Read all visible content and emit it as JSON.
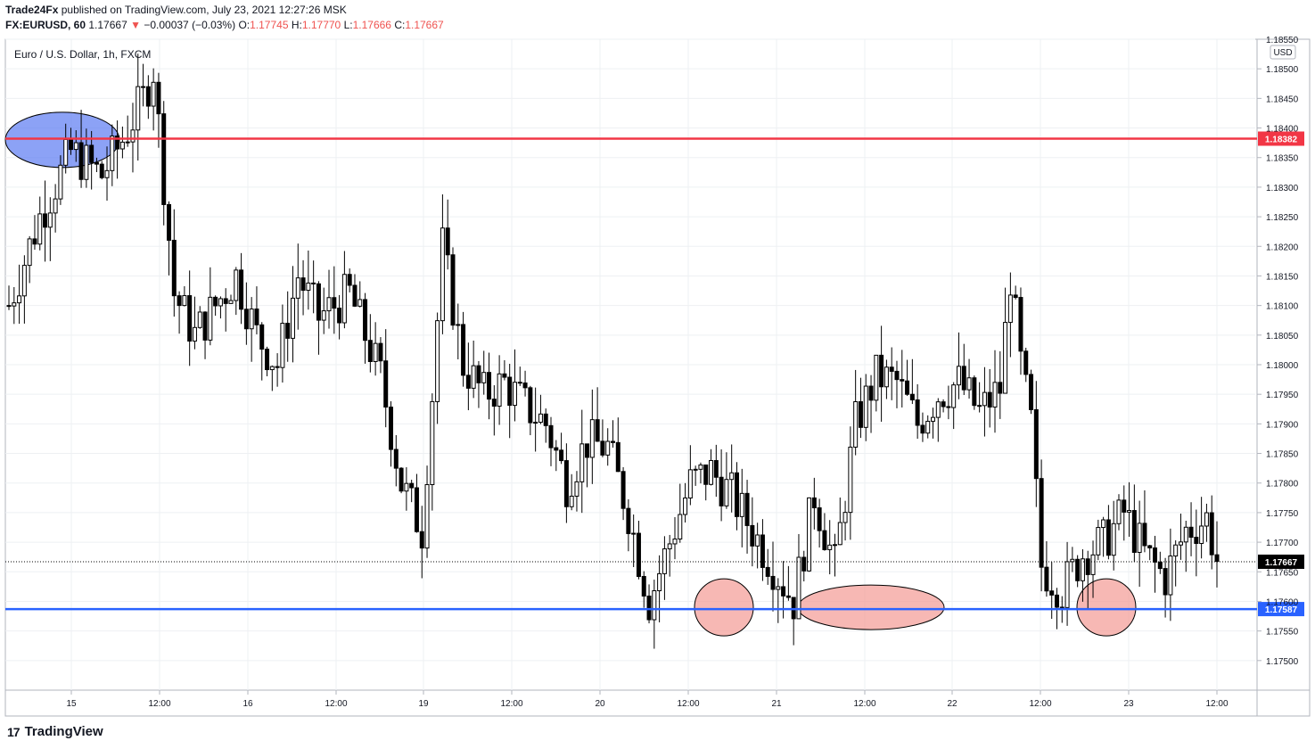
{
  "header": {
    "publisher": "Trade24Fx",
    "published_text": "published on TradingView.com, July 23, 2021 12:27:26 MSK",
    "symbol": "FX:EURUSD, 60",
    "last": "1.17667",
    "change_arrow": "▼",
    "change": "−0.00037 (−0.03%)",
    "o_label": "O:",
    "o_value": "1.17745",
    "h_label": "H:",
    "h_value": "1.17770",
    "l_label": "L:",
    "l_value": "1.17666",
    "c_label": "C:",
    "c_value": "1.17667"
  },
  "chart_title": "Euro / U.S. Dollar, 1h, FXCM",
  "footer": {
    "brand": "TradingView",
    "logo_icon": "tradingview-logo-icon"
  },
  "colors": {
    "resistance": "#f23645",
    "support": "#2962ff",
    "highlight_blue": "#5b7bf2",
    "highlight_red": "#f49a94",
    "candle": "#000000"
  },
  "chart_data": {
    "type": "candlestick",
    "title": "Euro / U.S. Dollar, 1h, FXCM",
    "currency": "USD",
    "ylim": [
      1.1745,
      1.1855
    ],
    "y_ticks": [
      "1.17500",
      "1.17550",
      "1.17600",
      "1.17650",
      "1.17700",
      "1.17750",
      "1.17800",
      "1.17850",
      "1.17900",
      "1.17950",
      "1.18000",
      "1.18050",
      "1.18100",
      "1.18150",
      "1.18200",
      "1.18250",
      "1.18300",
      "1.18350",
      "1.18400",
      "1.18450",
      "1.18500",
      "1.18550"
    ],
    "x_ticks": [
      "15",
      "12:00",
      "16",
      "12:00",
      "19",
      "12:00",
      "20",
      "12:00",
      "21",
      "12:00",
      "22",
      "12:00",
      "23",
      "12:00"
    ],
    "resistance_level": "1.18382",
    "support_level": "1.17587",
    "last_price": "1.17667",
    "highlight_zones": [
      {
        "kind": "resistance",
        "center_price": 1.1838
      },
      {
        "kind": "support",
        "center_price": 1.1759
      },
      {
        "kind": "support",
        "center_price": 1.1759
      },
      {
        "kind": "support",
        "center_price": 1.1759
      }
    ],
    "anchors": [
      [
        0,
        1.181
      ],
      [
        6,
        1.1825
      ],
      [
        12,
        1.1836
      ],
      [
        18,
        1.1832
      ],
      [
        22,
        1.1838
      ],
      [
        26,
        1.1845
      ],
      [
        28,
        1.185
      ],
      [
        32,
        1.1812
      ],
      [
        36,
        1.1805
      ],
      [
        40,
        1.181
      ],
      [
        44,
        1.1815
      ],
      [
        48,
        1.1805
      ],
      [
        52,
        1.18
      ],
      [
        56,
        1.1815
      ],
      [
        60,
        1.1808
      ],
      [
        66,
        1.1812
      ],
      [
        72,
        1.1798
      ],
      [
        76,
        1.178
      ],
      [
        80,
        1.1772
      ],
      [
        82,
        1.1795
      ],
      [
        84,
        1.182
      ],
      [
        88,
        1.18
      ],
      [
        92,
        1.1795
      ],
      [
        96,
        1.1797
      ],
      [
        100,
        1.1793
      ],
      [
        104,
        1.179
      ],
      [
        108,
        1.178
      ],
      [
        112,
        1.1787
      ],
      [
        116,
        1.1786
      ],
      [
        120,
        1.1775
      ],
      [
        124,
        1.176
      ],
      [
        128,
        1.177
      ],
      [
        132,
        1.178
      ],
      [
        136,
        1.1782
      ],
      [
        140,
        1.1778
      ],
      [
        144,
        1.1772
      ],
      [
        148,
        1.1766
      ],
      [
        152,
        1.176
      ],
      [
        156,
        1.1778
      ],
      [
        160,
        1.1766
      ],
      [
        164,
        1.179
      ],
      [
        168,
        1.1798
      ],
      [
        172,
        1.1797
      ],
      [
        176,
        1.179
      ],
      [
        180,
        1.1795
      ],
      [
        184,
        1.1797
      ],
      [
        188,
        1.1792
      ],
      [
        192,
        1.1796
      ],
      [
        194,
        1.1815
      ],
      [
        196,
        1.18
      ],
      [
        198,
        1.179
      ],
      [
        200,
        1.1766
      ],
      [
        204,
        1.1762
      ],
      [
        208,
        1.1768
      ],
      [
        212,
        1.177
      ],
      [
        216,
        1.1775
      ],
      [
        220,
        1.1768
      ],
      [
        224,
        1.1764
      ],
      [
        228,
        1.1772
      ],
      [
        232,
        1.1774
      ],
      [
        234,
        1.1767
      ]
    ]
  }
}
